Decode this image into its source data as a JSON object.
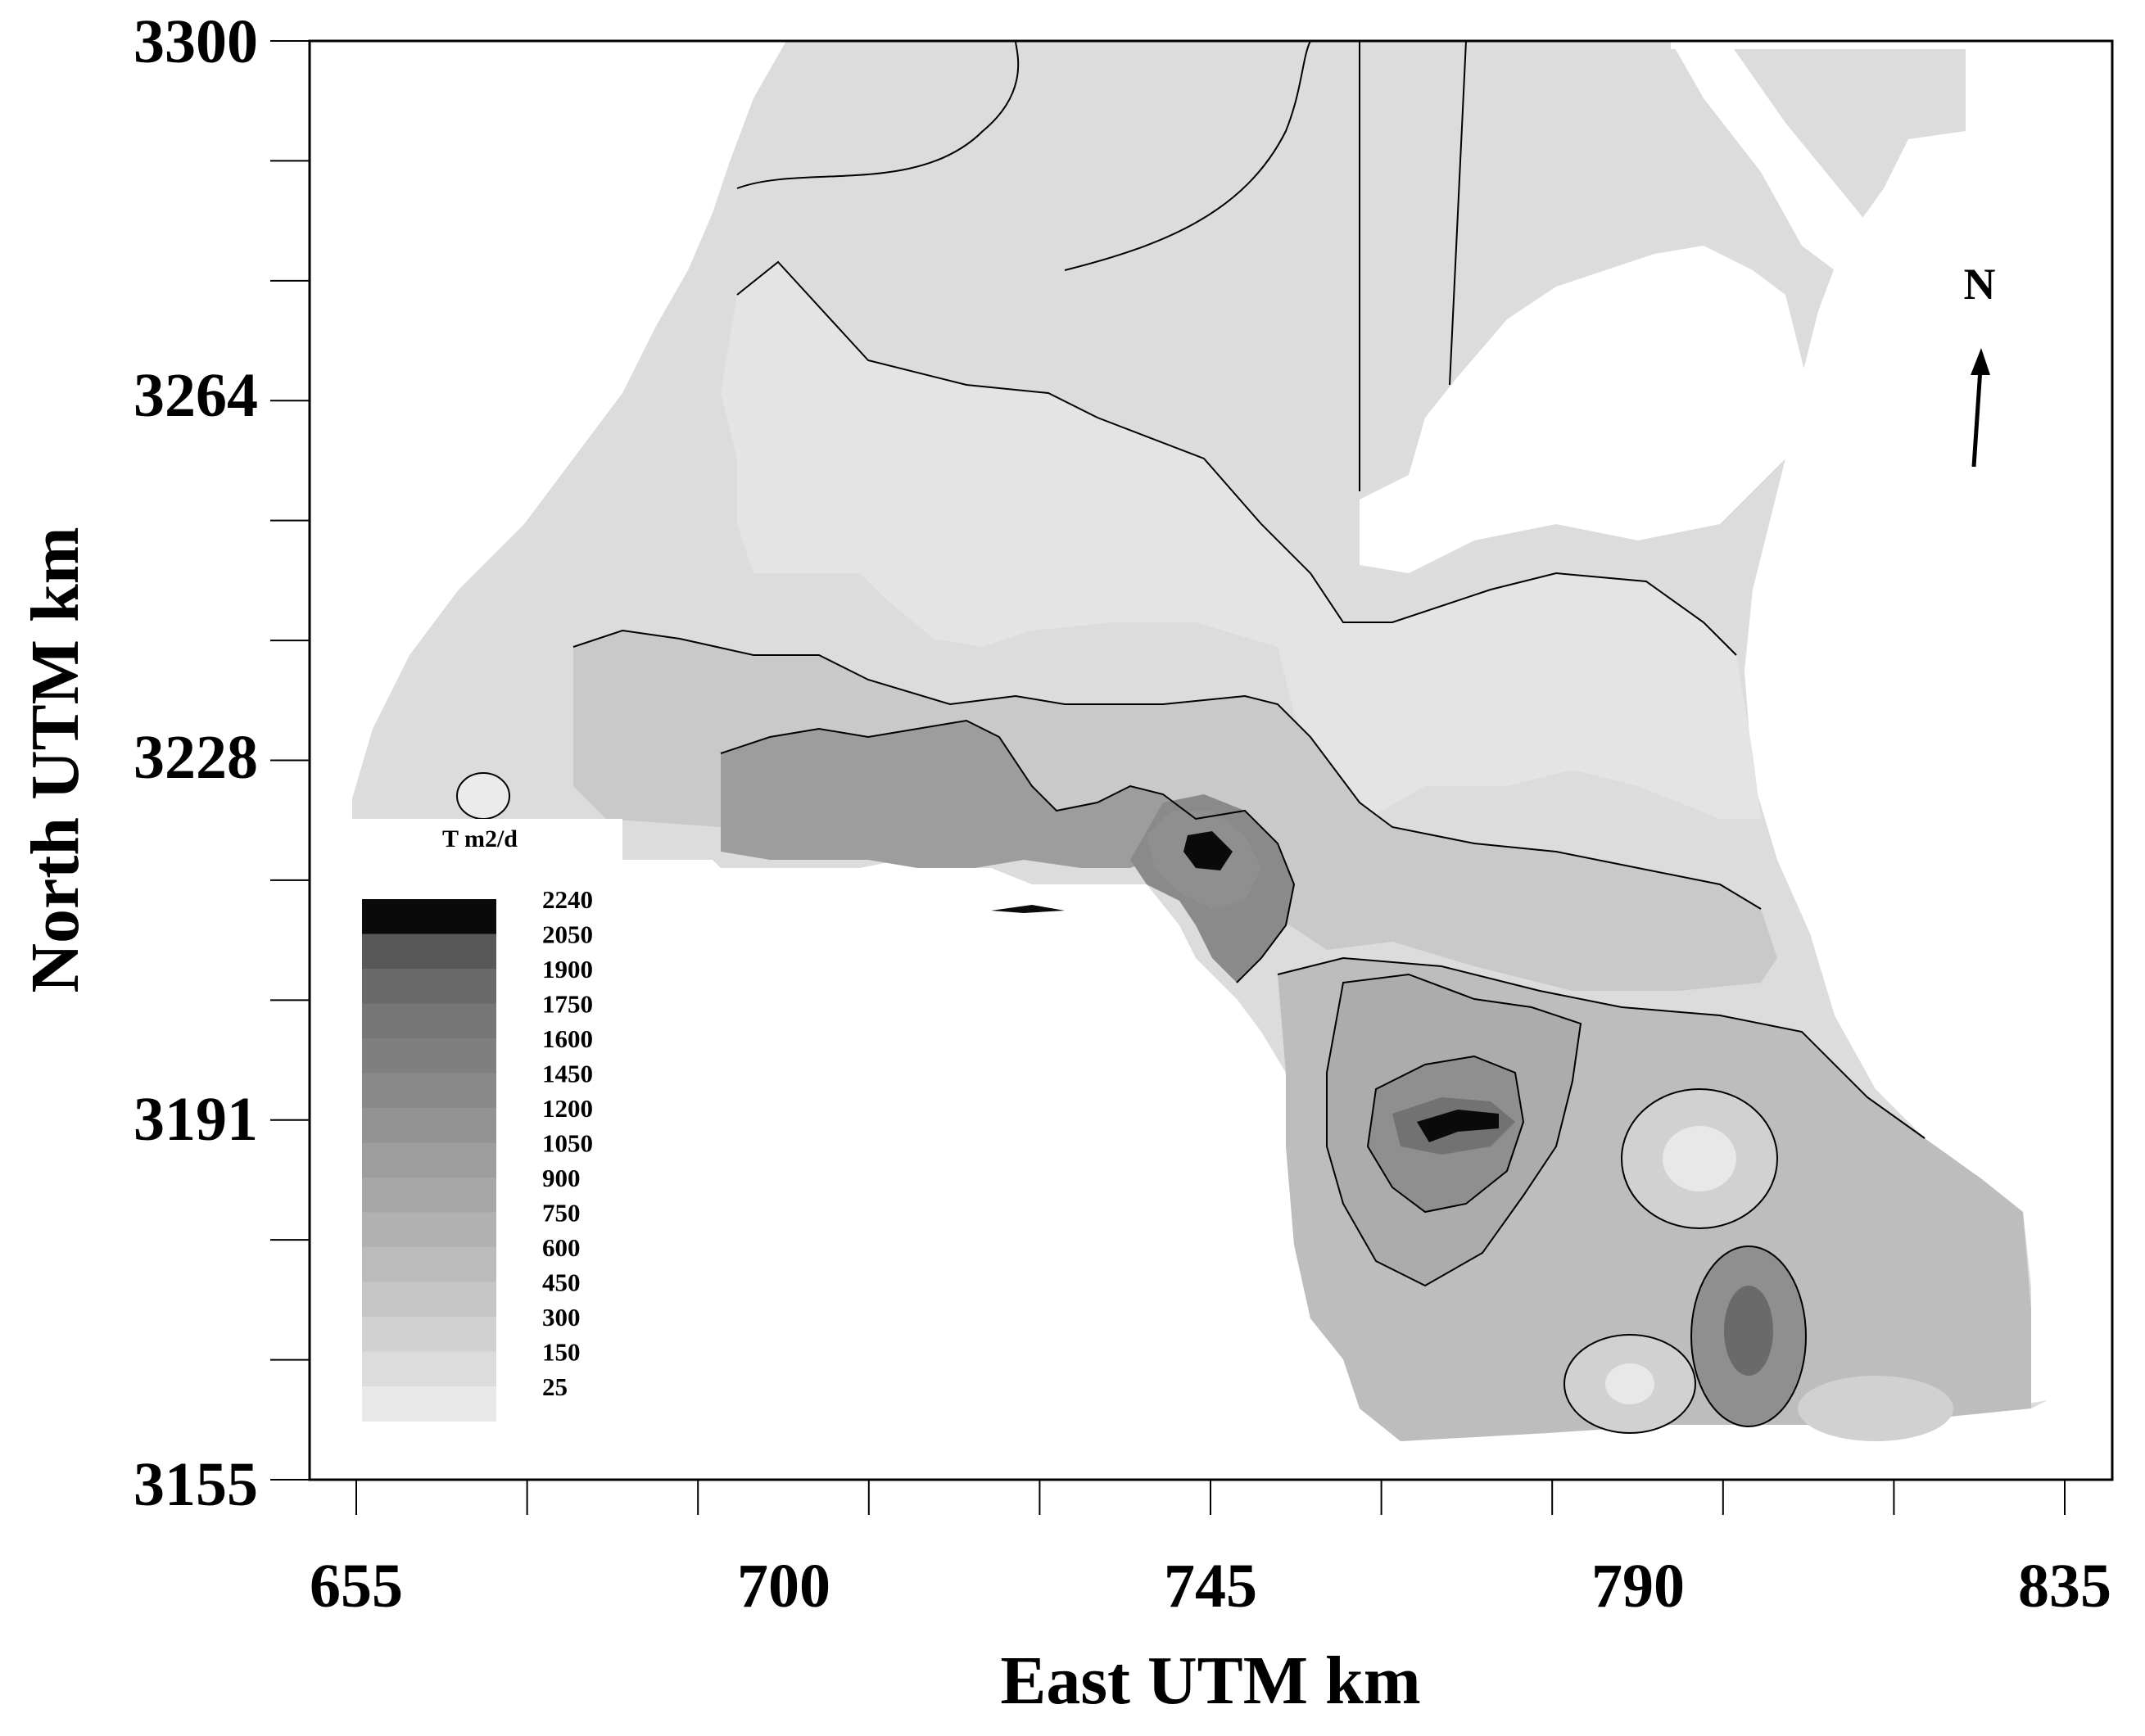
{
  "map": {
    "x_axis": {
      "title": "East UTM km",
      "ticks": [
        "655",
        "700",
        "745",
        "790",
        "835"
      ],
      "range": [
        655,
        835
      ]
    },
    "y_axis": {
      "title": "North UTM km",
      "ticks": [
        "3155",
        "3191",
        "3228",
        "3264",
        "3300"
      ],
      "range": [
        3155,
        3300
      ]
    },
    "north_arrow": {
      "label": "N",
      "icon": "north-arrow-icon"
    },
    "legend": {
      "title": "T m2/d",
      "levels": [
        "2240",
        "2050",
        "1900",
        "1750",
        "1600",
        "1450",
        "1200",
        "1050",
        "900",
        "750",
        "600",
        "450",
        "300",
        "150",
        "25"
      ],
      "colors": [
        "#0a0a0a",
        "#585858",
        "#6a6a6a",
        "#767676",
        "#7f7f7f",
        "#898989",
        "#939393",
        "#9d9d9d",
        "#a7a7a7",
        "#b1b1b1",
        "#bbbbbb",
        "#c6c6c6",
        "#d1d1d1",
        "#dcdcdc",
        "#e8e8e8"
      ]
    },
    "fill_colors": {
      "background": "#ffffff",
      "outline": "#000000"
    }
  }
}
